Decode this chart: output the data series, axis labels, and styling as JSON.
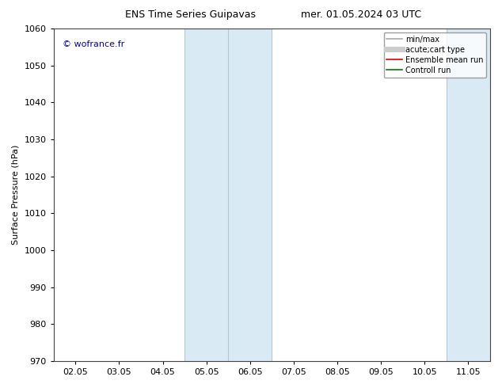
{
  "title_left": "ENS Time Series Guipavas",
  "title_right": "mer. 01.05.2024 03 UTC",
  "ylabel": "Surface Pressure (hPa)",
  "ylim": [
    970,
    1060
  ],
  "yticks": [
    970,
    980,
    990,
    1000,
    1010,
    1020,
    1030,
    1040,
    1050,
    1060
  ],
  "xtick_labels": [
    "02.05",
    "03.05",
    "04.05",
    "05.05",
    "06.05",
    "07.05",
    "08.05",
    "09.05",
    "10.05",
    "11.05"
  ],
  "xtick_positions": [
    0,
    1,
    2,
    3,
    4,
    5,
    6,
    7,
    8,
    9
  ],
  "xlim": [
    -0.5,
    9.5
  ],
  "shaded_bands": [
    {
      "xmin": 2.5,
      "xmax": 3.5,
      "color": "#daeaf5"
    },
    {
      "xmin": 3.5,
      "xmax": 4.5,
      "color": "#daeaf5"
    },
    {
      "xmin": 8.5,
      "xmax": 9.5,
      "color": "#daeaf5"
    }
  ],
  "band_vlines": [
    2.5,
    3.5,
    4.5,
    8.5,
    9.5
  ],
  "copyright_text": "© wofrance.fr",
  "copyright_color": "#0000bb",
  "legend_items": [
    {
      "label": "min/max",
      "color": "#aaaaaa",
      "lw": 1.2
    },
    {
      "label": "acute;cart type",
      "color": "#cccccc",
      "lw": 5
    },
    {
      "label": "Ensemble mean run",
      "color": "#dd0000",
      "lw": 1.2
    },
    {
      "label": "Controll run",
      "color": "#007700",
      "lw": 1.2
    }
  ],
  "bg_color": "#ffffff",
  "plot_bg_color": "#ffffff",
  "title_fontsize": 9,
  "axis_fontsize": 8,
  "tick_fontsize": 8
}
